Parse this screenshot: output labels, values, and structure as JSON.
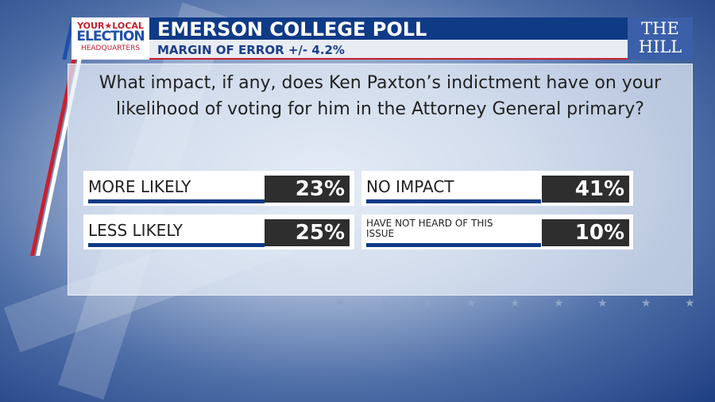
{
  "logo": {
    "line1": "YOUR★LOCAL",
    "line2": "ELECTION",
    "line3": "HEADQUARTERS"
  },
  "header": {
    "title": "EMERSON COLLEGE POLL",
    "subtitle": "MARGIN OF ERROR +/- 4.2%"
  },
  "brand": {
    "line1": "THE",
    "line2": "HILL"
  },
  "question": "What impact, if any, does Ken Paxton’s indictment have on your likelihood of voting for him in the Attorney General primary?",
  "results": [
    {
      "label": "MORE LIKELY",
      "value": "23%"
    },
    {
      "label": "NO IMPACT",
      "value": "41%"
    },
    {
      "label": "LESS LIKELY",
      "value": "25%"
    },
    {
      "label": "HAVE NOT HEARD OF THIS ISSUE",
      "value": "10%"
    }
  ],
  "colors": {
    "navy": "#0f3a86",
    "red": "#c8202f",
    "dark": "#2e2e2e"
  }
}
